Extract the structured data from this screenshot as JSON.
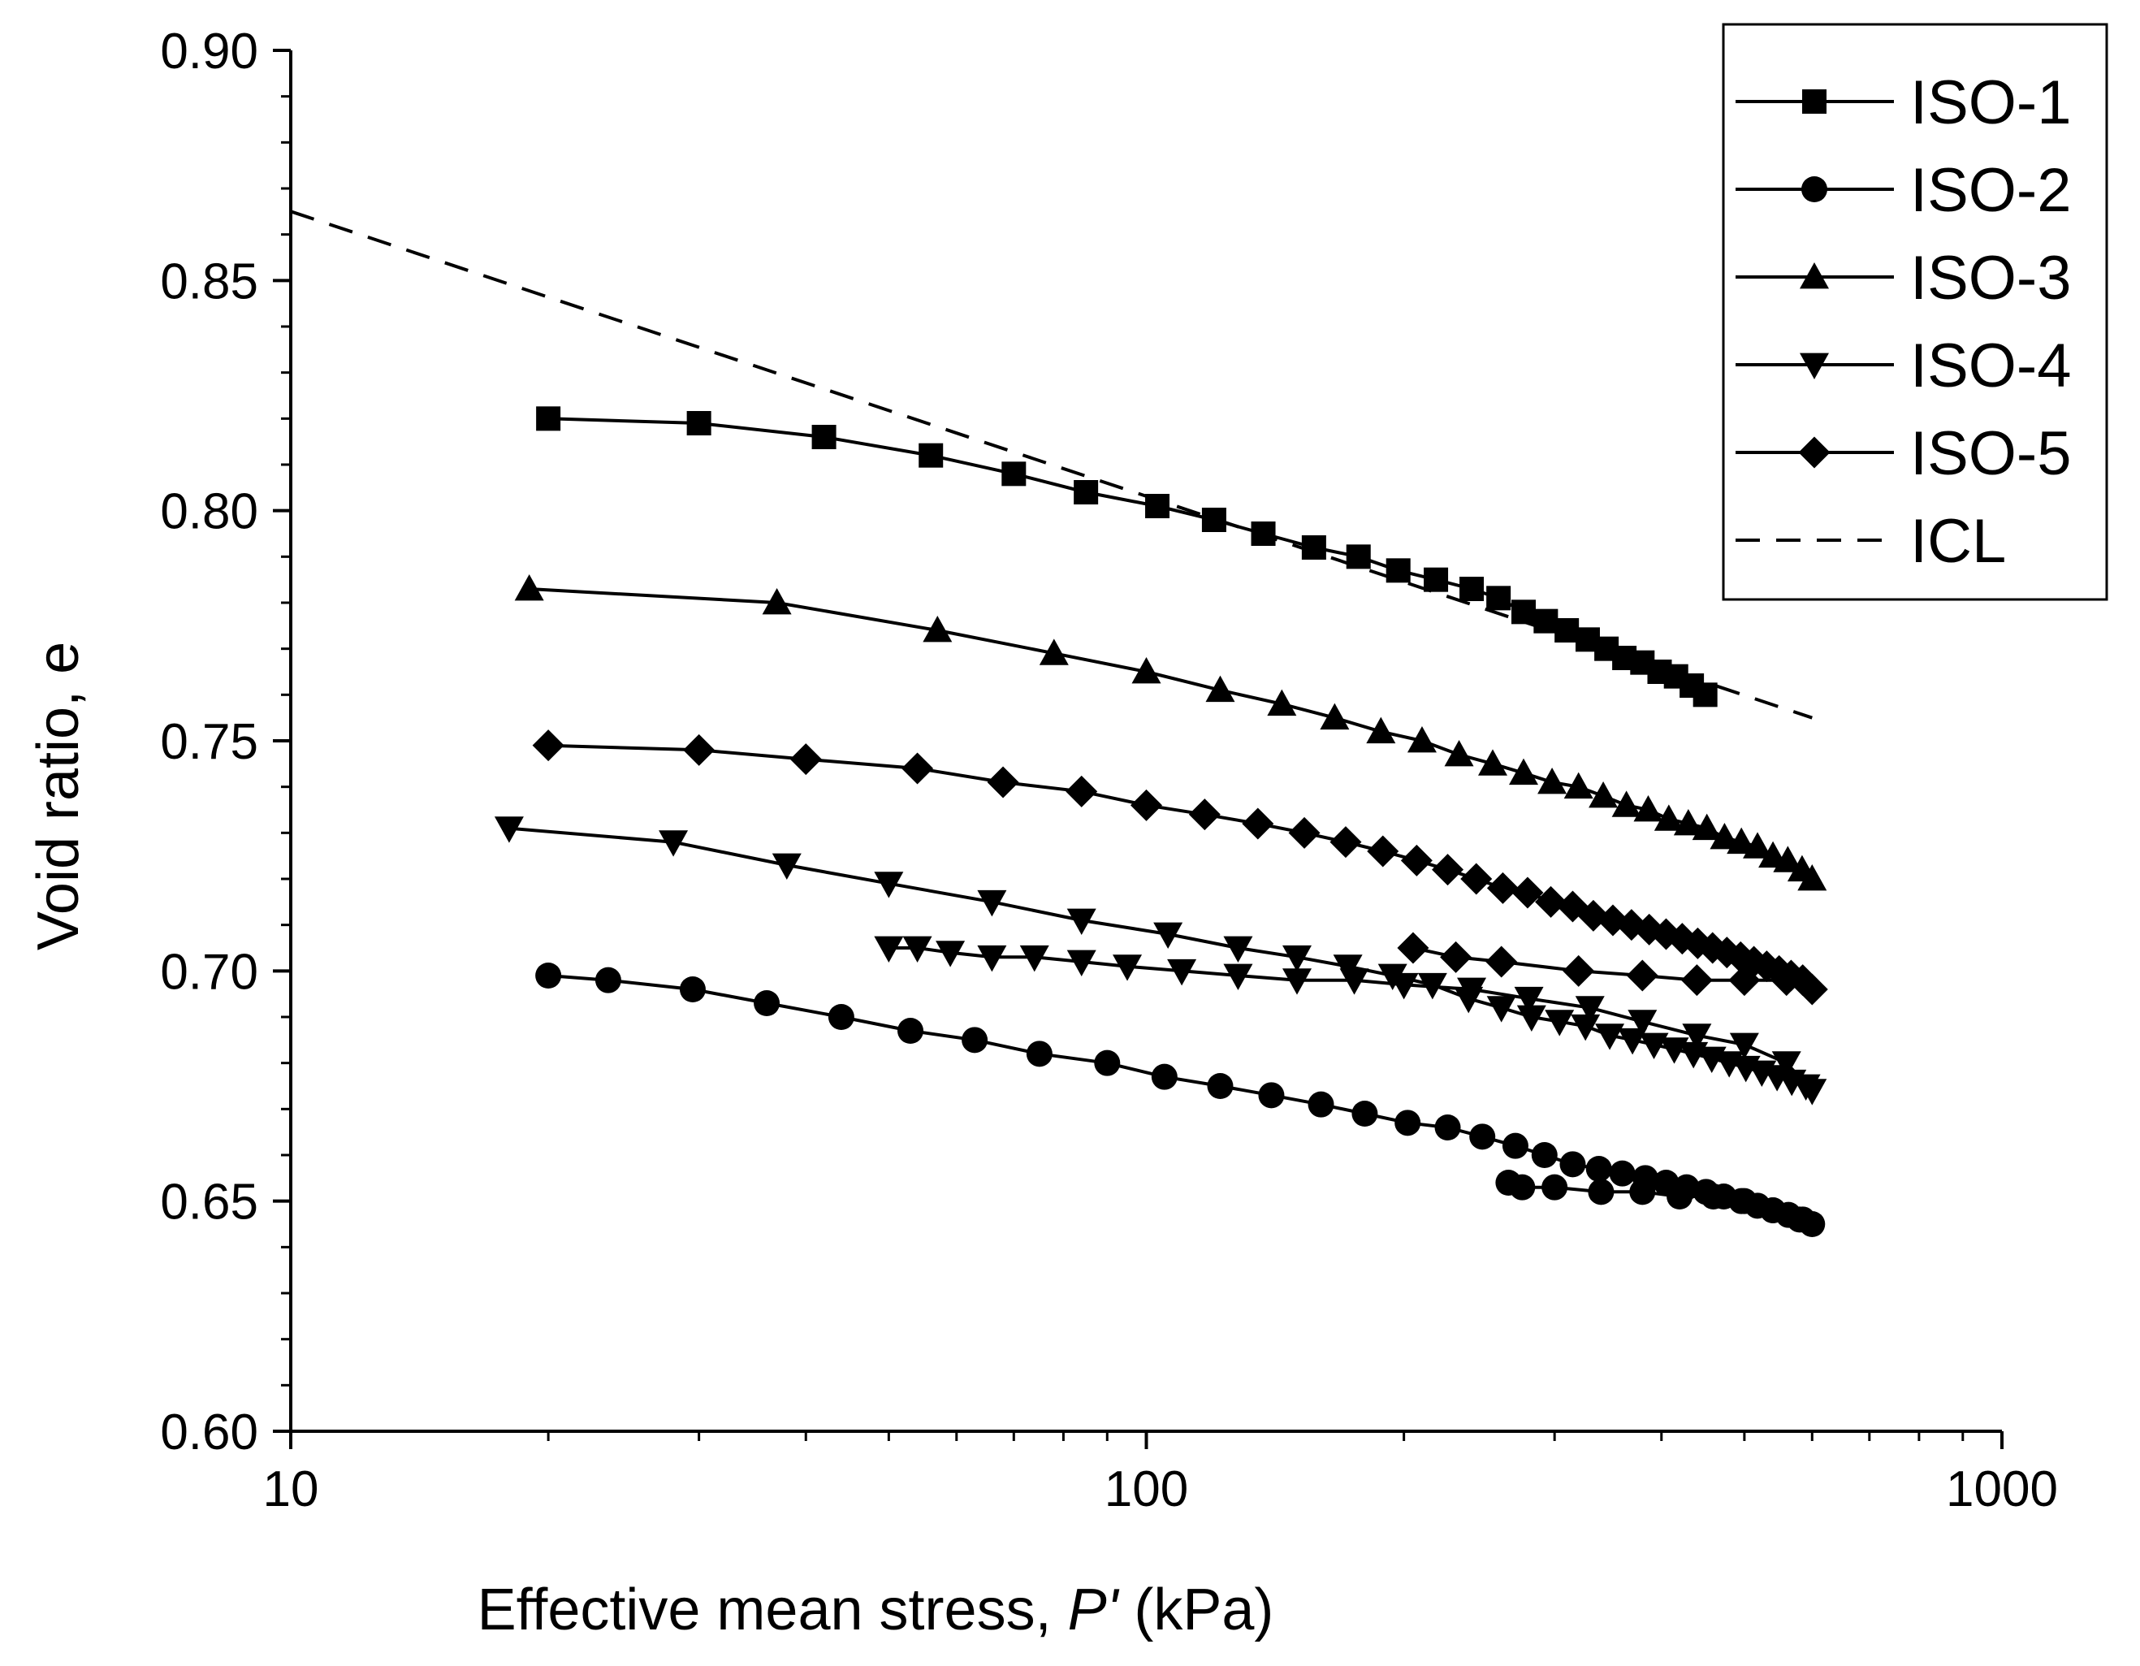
{
  "chart_data": {
    "type": "line",
    "xscale": "log",
    "xlabel_parts": {
      "main": "Effective mean stress, ",
      "symbol": "P'",
      "unit": " (kPa)"
    },
    "ylabel": "Void ratio, e",
    "xlim": [
      10,
      1000
    ],
    "ylim": [
      0.6,
      0.9
    ],
    "xticks": [
      10,
      100,
      1000
    ],
    "xtick_labels": [
      "10",
      "100",
      "1000"
    ],
    "yticks": [
      0.6,
      0.65,
      0.7,
      0.75,
      0.8,
      0.85,
      0.9
    ],
    "ytick_labels": [
      "0.60",
      "0.65",
      "0.70",
      "0.75",
      "0.80",
      "0.85",
      "0.90"
    ],
    "legend_position": "top-right",
    "colors": {
      "line": "#000000",
      "background": "#ffffff"
    },
    "series": [
      {
        "name": "ISO-1",
        "marker": "square",
        "dashed": false,
        "x": [
          20,
          30,
          42,
          56,
          70,
          85,
          103,
          120,
          137,
          157,
          177,
          197,
          218,
          240,
          258,
          276,
          293,
          310,
          328,
          345,
          362,
          380,
          398,
          416,
          434,
          450
        ],
        "y": [
          0.82,
          0.819,
          0.816,
          0.812,
          0.808,
          0.804,
          0.801,
          0.798,
          0.795,
          0.792,
          0.79,
          0.787,
          0.785,
          0.783,
          0.781,
          0.778,
          0.776,
          0.774,
          0.772,
          0.77,
          0.768,
          0.767,
          0.765,
          0.764,
          0.762,
          0.76
        ]
      },
      {
        "name": "ISO-2",
        "marker": "circle",
        "dashed": false,
        "x": [
          20,
          23.5,
          29.5,
          36,
          44,
          53,
          63,
          75,
          90,
          105,
          122,
          140,
          160,
          180,
          202,
          225,
          247,
          270,
          292,
          315,
          338,
          360,
          383,
          405,
          428,
          451,
          473,
          496,
          518,
          540,
          563,
          585,
          600,
          580,
          540,
          500,
          460,
          420,
          380,
          340,
          300,
          275,
          265
        ],
        "y": [
          0.699,
          0.698,
          0.696,
          0.693,
          0.69,
          0.687,
          0.685,
          0.682,
          0.68,
          0.677,
          0.675,
          0.673,
          0.671,
          0.669,
          0.667,
          0.666,
          0.664,
          0.662,
          0.66,
          0.658,
          0.657,
          0.656,
          0.655,
          0.654,
          0.653,
          0.652,
          0.651,
          0.65,
          0.649,
          0.648,
          0.647,
          0.646,
          0.645,
          0.646,
          0.648,
          0.65,
          0.651,
          0.651,
          0.652,
          0.652,
          0.653,
          0.653,
          0.654
        ]
      },
      {
        "name": "ISO-3",
        "marker": "triangle-up",
        "dashed": false,
        "x": [
          19,
          37,
          57,
          78,
          100,
          122,
          144,
          166,
          188,
          210,
          232,
          254,
          276,
          298,
          320,
          342,
          364,
          386,
          408,
          430,
          452,
          474,
          496,
          518,
          540,
          562,
          584,
          600
        ],
        "y": [
          0.783,
          0.78,
          0.774,
          0.769,
          0.765,
          0.761,
          0.758,
          0.755,
          0.752,
          0.75,
          0.747,
          0.745,
          0.743,
          0.741,
          0.74,
          0.738,
          0.736,
          0.735,
          0.733,
          0.732,
          0.731,
          0.729,
          0.728,
          0.727,
          0.725,
          0.724,
          0.722,
          0.72
        ]
      },
      {
        "name": "ISO-4",
        "marker": "triangle-down",
        "dashed": false,
        "x": [
          18,
          28,
          38,
          50,
          66,
          84,
          106,
          128,
          150,
          172,
          194,
          216,
          238,
          260,
          282,
          304,
          326,
          348,
          370,
          392,
          414,
          436,
          458,
          480,
          502,
          524,
          546,
          568,
          590,
          600,
          560,
          500,
          440,
          380,
          330,
          280,
          240,
          200,
          175,
          150,
          128,
          110,
          95,
          84,
          74,
          66,
          59,
          54,
          50
        ],
        "y": [
          0.731,
          0.728,
          0.723,
          0.719,
          0.715,
          0.711,
          0.708,
          0.705,
          0.703,
          0.701,
          0.699,
          0.697,
          0.694,
          0.692,
          0.69,
          0.689,
          0.688,
          0.686,
          0.685,
          0.684,
          0.683,
          0.682,
          0.681,
          0.68,
          0.679,
          0.678,
          0.677,
          0.676,
          0.675,
          0.674,
          0.68,
          0.684,
          0.686,
          0.689,
          0.692,
          0.694,
          0.696,
          0.697,
          0.698,
          0.698,
          0.699,
          0.7,
          0.701,
          0.702,
          0.703,
          0.703,
          0.704,
          0.705,
          0.705
        ]
      },
      {
        "name": "ISO-5",
        "marker": "diamond",
        "dashed": false,
        "x": [
          20,
          30,
          40,
          54,
          68,
          84,
          100,
          117,
          135,
          153,
          171,
          189,
          207,
          225,
          243,
          261,
          279,
          297,
          315,
          333,
          351,
          369,
          387,
          405,
          423,
          441,
          459,
          477,
          495,
          513,
          531,
          549,
          567,
          585,
          600,
          560,
          500,
          440,
          380,
          320,
          260,
          230,
          205
        ],
        "y": [
          0.749,
          0.748,
          0.746,
          0.744,
          0.741,
          0.739,
          0.736,
          0.734,
          0.732,
          0.73,
          0.728,
          0.726,
          0.724,
          0.722,
          0.72,
          0.718,
          0.717,
          0.715,
          0.714,
          0.712,
          0.711,
          0.71,
          0.709,
          0.708,
          0.707,
          0.706,
          0.705,
          0.704,
          0.703,
          0.702,
          0.701,
          0.7,
          0.699,
          0.698,
          0.696,
          0.698,
          0.698,
          0.698,
          0.699,
          0.7,
          0.702,
          0.703,
          0.705
        ]
      },
      {
        "name": "ICL",
        "marker": "none",
        "dashed": true,
        "x": [
          10,
          600
        ],
        "y": [
          0.865,
          0.755
        ]
      }
    ]
  }
}
